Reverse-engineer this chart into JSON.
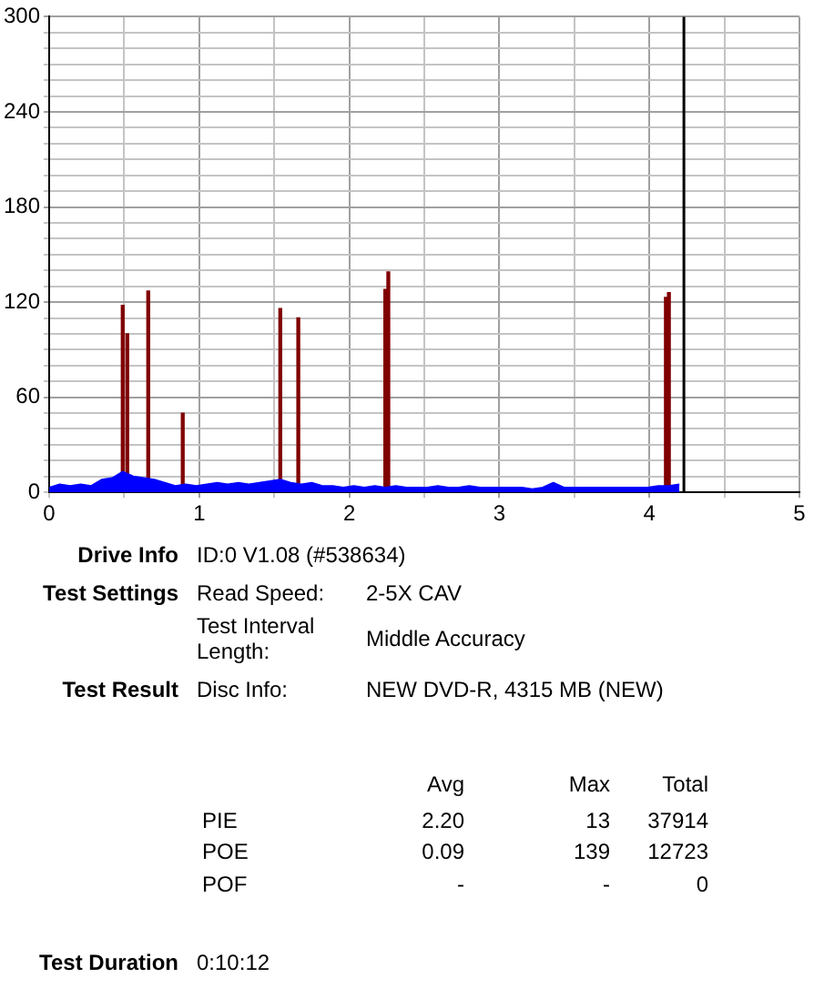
{
  "chart_data": {
    "type": "area",
    "xlim": [
      0,
      5
    ],
    "xticks": [
      0,
      {
        "value": 0.5,
        "label": null
      },
      1,
      {
        "value": 1.5,
        "label": null
      },
      2,
      {
        "value": 2.5,
        "label": null
      },
      3,
      {
        "value": 3.5,
        "label": null
      },
      4,
      {
        "value": 4.5,
        "label": null
      },
      5
    ],
    "ylim": [
      0,
      300
    ],
    "yticks": [
      0,
      {
        "value": 10,
        "label": null
      },
      {
        "value": 20,
        "label": null
      },
      {
        "value": 30,
        "label": null
      },
      {
        "value": 40,
        "label": null
      },
      {
        "value": 50,
        "label": null
      },
      60,
      {
        "value": 70,
        "label": null
      },
      {
        "value": 80,
        "label": null
      },
      {
        "value": 90,
        "label": null
      },
      {
        "value": 100,
        "label": null
      },
      {
        "value": 110,
        "label": null
      },
      120,
      {
        "value": 130,
        "label": null
      },
      {
        "value": 140,
        "label": null
      },
      {
        "value": 150,
        "label": null
      },
      {
        "value": 160,
        "label": null
      },
      {
        "value": 170,
        "label": null
      },
      180,
      {
        "value": 190,
        "label": null
      },
      {
        "value": 200,
        "label": null
      },
      {
        "value": 210,
        "label": null
      },
      {
        "value": 220,
        "label": null
      },
      {
        "value": 230,
        "label": null
      },
      240,
      {
        "value": 250,
        "label": null
      },
      {
        "value": 260,
        "label": null
      },
      {
        "value": 270,
        "label": null
      },
      {
        "value": 280,
        "label": null
      },
      {
        "value": 290,
        "label": null
      },
      300
    ],
    "grid": true,
    "legend": false,
    "series": [
      {
        "color": "#0000ff",
        "x": [
          0,
          0.07,
          0.14,
          0.21,
          0.28,
          0.35,
          0.42,
          0.49,
          0.56,
          0.63,
          0.7,
          0.77,
          0.84,
          0.91,
          0.98,
          1.05,
          1.12,
          1.19,
          1.26,
          1.33,
          1.4,
          1.47,
          1.54,
          1.61,
          1.68,
          1.75,
          1.82,
          1.89,
          1.96,
          2.03,
          2.1,
          2.17,
          2.24,
          2.31,
          2.38,
          2.45,
          2.52,
          2.59,
          2.66,
          2.73,
          2.8,
          2.87,
          2.94,
          3.01,
          3.08,
          3.15,
          3.22,
          3.29,
          3.36,
          3.43,
          3.5,
          3.57,
          3.64,
          3.71,
          3.78,
          3.85,
          3.92,
          3.99,
          4.06,
          4.13,
          4.2
        ],
        "values": [
          3,
          5,
          4,
          5,
          4,
          8,
          9,
          13,
          10,
          9,
          8,
          6,
          4,
          5,
          4,
          5,
          6,
          5,
          6,
          5,
          6,
          7,
          8,
          6,
          5,
          6,
          4,
          4,
          3,
          4,
          3,
          4,
          3,
          4,
          3,
          3,
          3,
          4,
          3,
          3,
          4,
          3,
          3,
          3,
          3,
          3,
          2,
          3,
          6,
          3,
          3,
          3,
          3,
          3,
          3,
          3,
          3,
          3,
          4,
          4,
          5
        ]
      },
      {
        "type": "bar",
        "color": "#800000",
        "x": [
          0.49,
          0.52,
          0.66,
          0.89,
          1.54,
          1.66,
          2.24,
          2.26,
          4.11,
          4.13
        ],
        "values": [
          118,
          100,
          127,
          50,
          116,
          110,
          128,
          139,
          123,
          126
        ]
      }
    ],
    "ref_lines": [
      {
        "axis": "x",
        "value": 4.23,
        "color": "#000000"
      }
    ],
    "annotations": [
      "Drive Info",
      "ID:0 V1.08 (#538634)",
      "Test Settings",
      "Read Speed:",
      "2-5X CAV",
      "Test Interval Length:",
      "Middle Accuracy",
      "Test Result",
      "Disc Info:",
      "NEW DVD-R, 4315 MB (NEW)",
      "Avg",
      "Max",
      "Total",
      "PIE",
      "2.20",
      "13",
      "37914",
      "POE",
      "0.09",
      "139",
      "12723",
      "POF",
      "-",
      "-",
      "0",
      "Test Duration",
      "0:10:12"
    ]
  }
}
